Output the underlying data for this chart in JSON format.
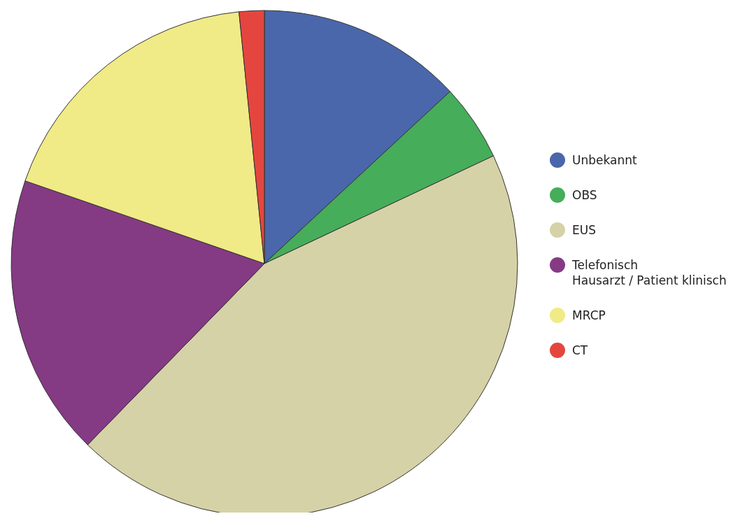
{
  "chart_data": {
    "type": "pie",
    "categories": [
      "Unbekannt",
      "OBS",
      "EUS",
      "Telefonisch\nHausarzt / Patient klinisch",
      "MRCP",
      "CT"
    ],
    "values": [
      13.1,
      4.9,
      44.3,
      18.0,
      18.1,
      1.6
    ],
    "colors": [
      "#4a67ab",
      "#46ad5a",
      "#d6d2a7",
      "#853a84",
      "#f0ea87",
      "#e4463f"
    ],
    "legend": "right"
  }
}
